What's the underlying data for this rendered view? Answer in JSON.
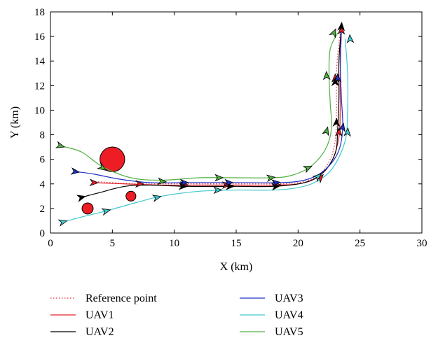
{
  "chart_data": {
    "type": "line",
    "xlabel": "X (km)",
    "ylabel": "Y (km)",
    "xlim": [
      0,
      30
    ],
    "ylim": [
      0,
      18
    ],
    "xticks": [
      0,
      5,
      10,
      15,
      20,
      25,
      30
    ],
    "yticks": [
      0,
      2,
      4,
      6,
      8,
      10,
      12,
      14,
      16,
      18
    ],
    "grid": false,
    "legend_position": "bottom",
    "obstacles": [
      {
        "x": 5.0,
        "y": 6.0,
        "r": 1.0
      },
      {
        "x": 3.0,
        "y": 2.0,
        "r": 0.45
      },
      {
        "x": 6.5,
        "y": 3.0,
        "r": 0.4
      }
    ],
    "obstacle_color": "#ee1c24",
    "series": [
      {
        "name": "Reference point",
        "color": "#e0303a",
        "dashed": true,
        "points": [
          [
            3.4,
            4.2
          ],
          [
            5,
            4.1
          ],
          [
            7,
            4.0
          ],
          [
            10,
            4.0
          ],
          [
            14,
            4.0
          ],
          [
            18,
            4.0
          ],
          [
            20,
            4.1
          ],
          [
            21.5,
            4.6
          ],
          [
            22.5,
            5.8
          ],
          [
            23,
            7.5
          ],
          [
            23.1,
            10
          ],
          [
            23.1,
            13
          ],
          [
            23.3,
            15.5
          ],
          [
            23.5,
            16.6
          ]
        ],
        "arrows": []
      },
      {
        "name": "UAV1",
        "color": "#e8202a",
        "dashed": false,
        "points": [
          [
            3.5,
            4.1
          ],
          [
            6,
            4.0
          ],
          [
            9,
            3.9
          ],
          [
            12,
            3.9
          ],
          [
            15,
            3.9
          ],
          [
            18,
            3.9
          ],
          [
            20,
            4.0
          ],
          [
            21.5,
            4.5
          ],
          [
            22.7,
            5.8
          ],
          [
            23.3,
            7.8
          ],
          [
            23.4,
            10
          ],
          [
            23.4,
            13
          ],
          [
            23.5,
            16.5
          ]
        ],
        "arrows": [
          [
            3.5,
            4.1
          ],
          [
            7.2,
            4.0
          ],
          [
            10.8,
            3.9
          ],
          [
            14.2,
            3.9
          ],
          [
            18.3,
            3.9
          ],
          [
            21.8,
            4.5
          ],
          [
            23.3,
            8.2
          ],
          [
            23.0,
            12.6
          ],
          [
            23.5,
            16.5
          ]
        ]
      },
      {
        "name": "UAV2",
        "color": "#000000",
        "dashed": false,
        "points": [
          [
            2.5,
            2.9
          ],
          [
            4,
            3.3
          ],
          [
            6,
            3.8
          ],
          [
            8,
            3.9
          ],
          [
            11,
            3.8
          ],
          [
            15,
            3.8
          ],
          [
            18,
            3.8
          ],
          [
            20.5,
            4.1
          ],
          [
            22,
            4.9
          ],
          [
            23,
            6.5
          ],
          [
            23.2,
            8.5
          ],
          [
            23.3,
            11
          ],
          [
            23.3,
            14
          ],
          [
            23.5,
            16.8
          ]
        ],
        "arrows": [
          [
            2.5,
            2.9
          ],
          [
            10.7,
            3.8
          ],
          [
            14.5,
            3.8
          ],
          [
            18.2,
            3.8
          ],
          [
            23.1,
            9.0
          ],
          [
            23.0,
            12.3
          ],
          [
            23.5,
            16.8
          ]
        ]
      },
      {
        "name": "UAV3",
        "color": "#1e30c8",
        "dashed": false,
        "points": [
          [
            2.0,
            5.0
          ],
          [
            3.5,
            4.8
          ],
          [
            5.5,
            4.4
          ],
          [
            8,
            4.1
          ],
          [
            11,
            4.1
          ],
          [
            15,
            4.1
          ],
          [
            18.5,
            4.1
          ],
          [
            20.5,
            4.3
          ],
          [
            22,
            5.0
          ],
          [
            23.2,
            6.5
          ],
          [
            23.6,
            8.5
          ],
          [
            23.5,
            11
          ],
          [
            23.4,
            14
          ],
          [
            23.5,
            16.5
          ]
        ],
        "arrows": [
          [
            2.0,
            5.0
          ],
          [
            10.8,
            4.1
          ],
          [
            14.4,
            4.1
          ],
          [
            18.2,
            4.1
          ],
          [
            23.6,
            8.6
          ],
          [
            23.2,
            12.6
          ]
        ]
      },
      {
        "name": "UAV4",
        "color": "#40c8d0",
        "dashed": false,
        "points": [
          [
            1.0,
            0.9
          ],
          [
            2.5,
            1.3
          ],
          [
            4.5,
            1.8
          ],
          [
            7,
            2.5
          ],
          [
            9,
            3.0
          ],
          [
            12,
            3.4
          ],
          [
            15,
            3.5
          ],
          [
            18,
            3.5
          ],
          [
            20,
            3.7
          ],
          [
            21.5,
            4.2
          ],
          [
            22.8,
            5.3
          ],
          [
            23.8,
            7.5
          ],
          [
            24.0,
            10
          ],
          [
            24.0,
            13
          ],
          [
            23.8,
            15.8
          ]
        ],
        "arrows": [
          [
            1.0,
            0.9
          ],
          [
            4.5,
            1.8
          ],
          [
            8.6,
            2.9
          ],
          [
            13.5,
            3.5
          ],
          [
            21.6,
            4.6
          ],
          [
            24.0,
            8.2
          ],
          [
            24.2,
            15.8
          ]
        ]
      },
      {
        "name": "UAV5",
        "color": "#50b040",
        "dashed": false,
        "points": [
          [
            0.8,
            7.1
          ],
          [
            2.5,
            6.6
          ],
          [
            4.2,
            5.4
          ],
          [
            6.5,
            4.5
          ],
          [
            9,
            4.3
          ],
          [
            12,
            4.5
          ],
          [
            15,
            4.5
          ],
          [
            18,
            4.5
          ],
          [
            19.5,
            4.7
          ],
          [
            21,
            5.4
          ],
          [
            22.2,
            6.8
          ],
          [
            22.7,
            8.5
          ],
          [
            22.6,
            10.5
          ],
          [
            22.5,
            13
          ],
          [
            22.6,
            15
          ],
          [
            23.2,
            16.3
          ]
        ],
        "arrows": [
          [
            0.8,
            7.1
          ],
          [
            4.2,
            5.3
          ],
          [
            9.0,
            4.2
          ],
          [
            13.6,
            4.5
          ],
          [
            17.8,
            4.5
          ],
          [
            20.8,
            5.3
          ],
          [
            22.3,
            8.3
          ],
          [
            22.3,
            12.8
          ],
          [
            22.9,
            16.3
          ]
        ]
      }
    ]
  },
  "legend": {
    "items": [
      {
        "label": "Reference point",
        "color": "#e0303a",
        "dashed": true
      },
      {
        "label": "UAV3",
        "color": "#1e30c8",
        "dashed": false
      },
      {
        "label": "UAV1",
        "color": "#e8202a",
        "dashed": false
      },
      {
        "label": "UAV4",
        "color": "#40c8d0",
        "dashed": false
      },
      {
        "label": "UAV2",
        "color": "#000000",
        "dashed": false
      },
      {
        "label": "UAV5",
        "color": "#50b040",
        "dashed": false
      }
    ]
  }
}
